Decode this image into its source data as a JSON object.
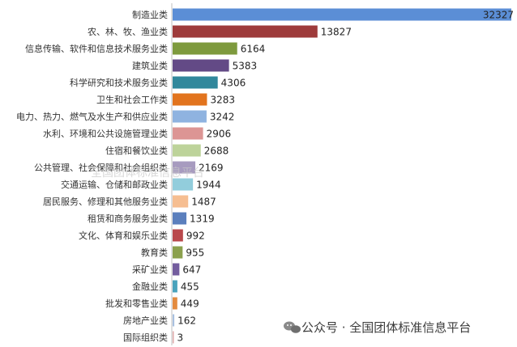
{
  "chart_data": {
    "type": "bar",
    "orientation": "horizontal",
    "categories": [
      "制造业类",
      "农、林、牧、渔业类",
      "信息传输、软件和信息技术服务业类",
      "建筑业类",
      "科学研究和技术服务业类",
      "卫生和社会工作类",
      "电力、热力、燃气及水生产和供应业类",
      "水利、环境和公共设施管理业类",
      "住宿和餐饮业类",
      "公共管理、社会保障和社会组织类",
      "交通运输、仓储和邮政业类",
      "居民服务、修理和其他服务业类",
      "租赁和商务服务业类",
      "文化、体育和娱乐业类",
      "教育类",
      "采矿业类",
      "金融业类",
      "批发和零售业类",
      "房地产业类",
      "国际组织类"
    ],
    "values": [
      32327,
      13827,
      6164,
      5383,
      4306,
      3283,
      3242,
      2906,
      2688,
      2169,
      1944,
      1487,
      1319,
      992,
      955,
      647,
      455,
      449,
      162,
      3
    ],
    "colors": [
      "#5b8ed6",
      "#9e3b3b",
      "#7e9a3e",
      "#634a86",
      "#31889c",
      "#e2741e",
      "#8fb3e0",
      "#dc9594",
      "#bdd39a",
      "#a79bbf",
      "#92cddc",
      "#f6be91",
      "#5b7fbd",
      "#b9494c",
      "#8ba04d",
      "#735d9e",
      "#4aa3bc",
      "#e48b3f",
      "#a8c0e0",
      "#e0a8a8"
    ],
    "title": "",
    "xlabel": "",
    "ylabel": "",
    "xlim": [
      0,
      32327
    ],
    "grid": false,
    "legend": "none"
  },
  "watermark": {
    "icon": "wechat-icon",
    "text": "公众号 · 全国团体标准信息平台",
    "faint_text": "全国团体标准信息平台"
  }
}
